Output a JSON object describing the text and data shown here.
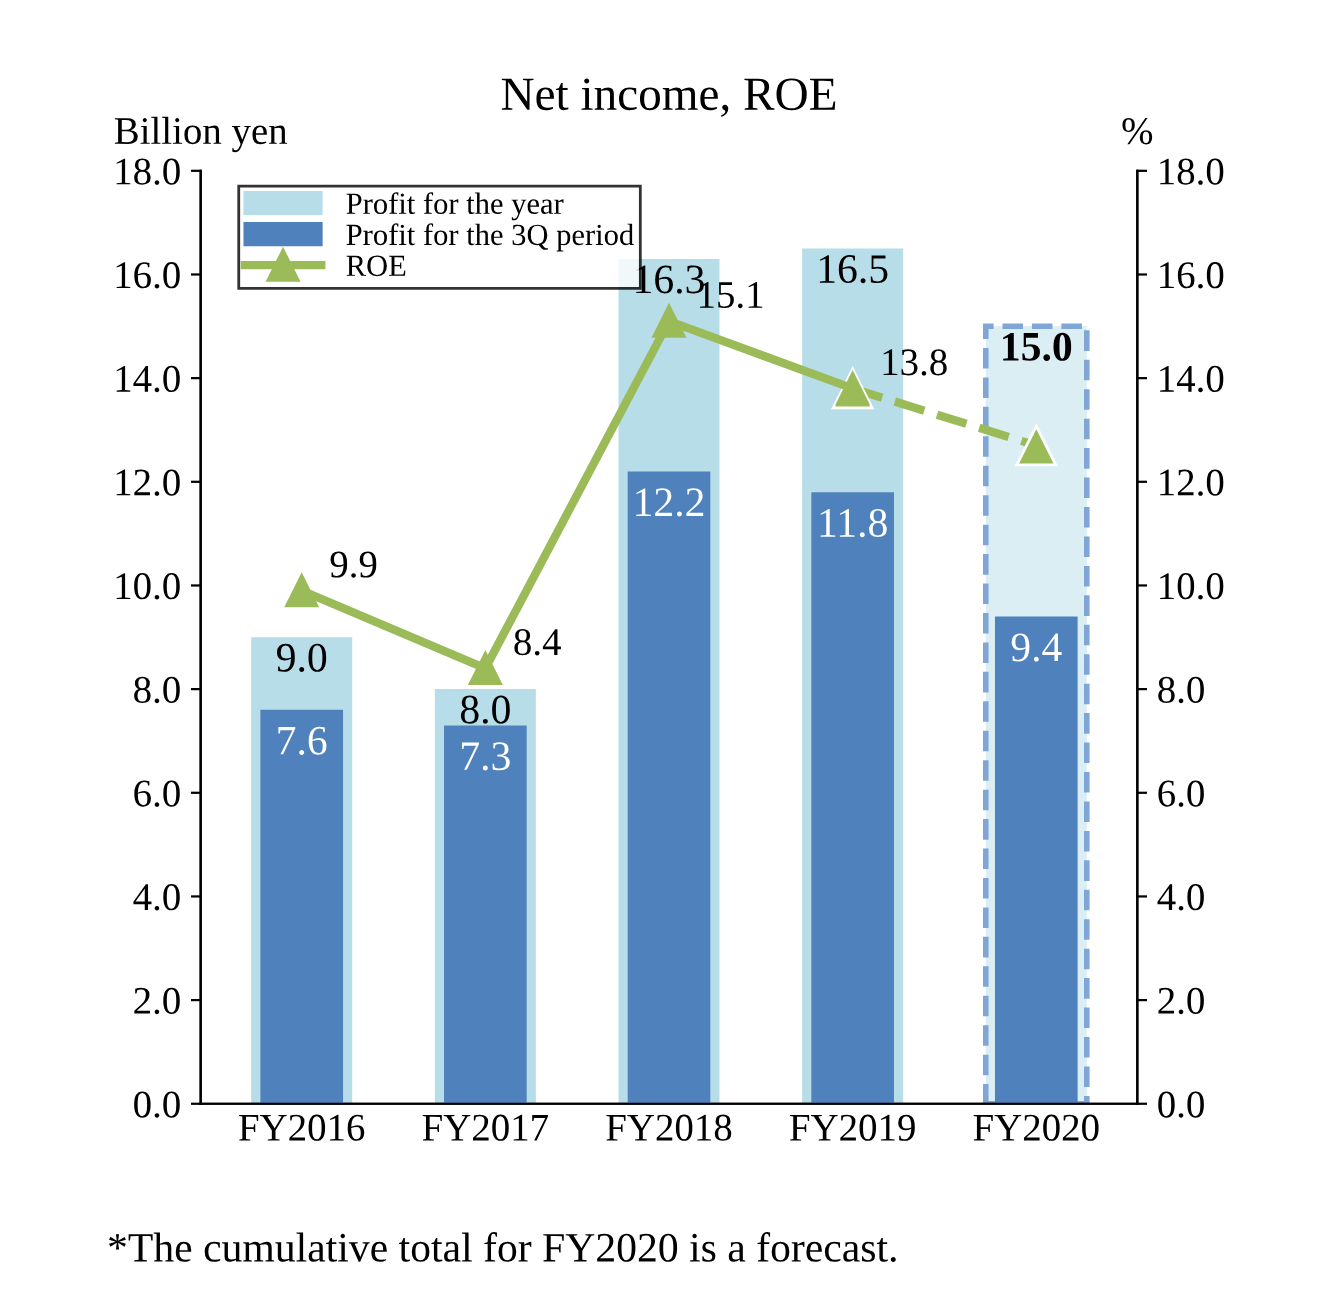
{
  "chart_data": {
    "type": "bar",
    "title": "Net income, ROE",
    "ylabel": "Billion yen",
    "y2label": "%",
    "categories": [
      "FY2016",
      "FY2017",
      "FY2018",
      "FY2019",
      "FY2020"
    ],
    "series": [
      {
        "name": "Profit for the year",
        "colors": [
          "#b7dde8",
          "#b7dde8",
          "#b7dde8",
          "#b7dde8",
          "#dbeef4"
        ],
        "values": [
          9.0,
          8.0,
          16.3,
          16.5,
          15.0
        ],
        "value_labels": [
          "9.0",
          "8.0",
          "16.3",
          "16.5",
          "15.0"
        ]
      },
      {
        "name": "Profit for the 3Q period",
        "color": "#4f81bd",
        "values": [
          7.6,
          7.3,
          12.2,
          11.8,
          9.4
        ],
        "value_labels": [
          "7.6",
          "7.3",
          "12.2",
          "11.8",
          "9.4"
        ]
      },
      {
        "name": "ROE",
        "type": "line",
        "axis": "y2",
        "color": "#9bbb59",
        "marker": "triangle",
        "line_style": "solid",
        "values": [
          9.9,
          8.4,
          15.1,
          13.8,
          null
        ],
        "value_labels": [
          "9.9",
          "8.4",
          "15.1",
          "13.8",
          null
        ]
      },
      {
        "type": "line",
        "axis": "y2",
        "color": "#9bbb59",
        "marker": "triangle",
        "line_style": "dashed",
        "values": [
          null,
          null,
          null,
          13.8,
          12.7
        ],
        "value_labels": [
          null,
          null,
          null,
          null,
          null
        ]
      }
    ],
    "ylim": [
      0,
      18
    ],
    "yticks": [
      {
        "value": 0,
        "label": "0.0"
      },
      {
        "value": 2,
        "label": "2.0"
      },
      {
        "value": 4,
        "label": "4.0"
      },
      {
        "value": 6,
        "label": "6.0"
      },
      {
        "value": 8,
        "label": "8.0"
      },
      {
        "value": 10,
        "label": "10.0"
      },
      {
        "value": 12,
        "label": "12.0"
      },
      {
        "value": 14,
        "label": "14.0"
      },
      {
        "value": 16,
        "label": "16.0"
      },
      {
        "value": 18,
        "label": "18.0"
      }
    ],
    "y2lim": [
      0,
      18
    ],
    "y2ticks": [
      {
        "value": 0,
        "label": "0.0"
      },
      {
        "value": 2,
        "label": "2.0"
      },
      {
        "value": 4,
        "label": "4.0"
      },
      {
        "value": 6,
        "label": "6.0"
      },
      {
        "value": 8,
        "label": "8.0"
      },
      {
        "value": 10,
        "label": "10.0"
      },
      {
        "value": 12,
        "label": "12.0"
      },
      {
        "value": 14,
        "label": "14.0"
      },
      {
        "value": 16,
        "label": "16.0"
      },
      {
        "value": 18,
        "label": "18.0"
      }
    ],
    "legend": "top",
    "grid": false,
    "annotations": [
      "*The cumulative total for FY2020 is a forecast."
    ]
  }
}
